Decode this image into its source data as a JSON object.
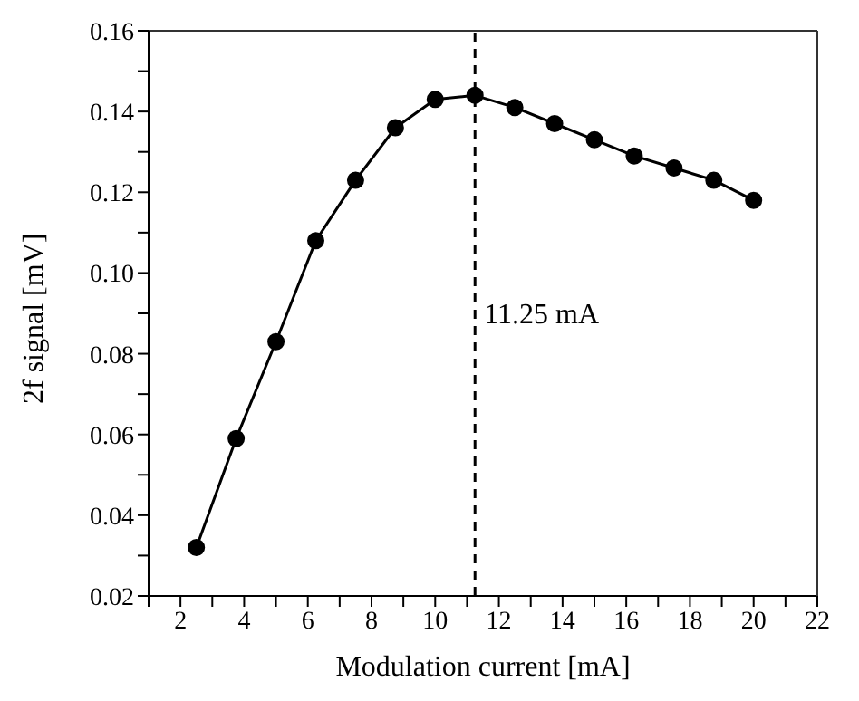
{
  "chart_data": {
    "type": "line",
    "xlabel": "Modulation current [mA]",
    "ylabel": "2f signal [mV]",
    "x": [
      2.5,
      3.75,
      5,
      6.25,
      7.5,
      8.75,
      10,
      11.25,
      12.5,
      13.75,
      15,
      16.25,
      17.5,
      18.75,
      20
    ],
    "series": [
      {
        "color": "#000000",
        "values": [
          0.032,
          0.059,
          0.083,
          0.108,
          0.123,
          0.136,
          0.143,
          0.144,
          0.141,
          0.137,
          0.133,
          0.129,
          0.126,
          0.123,
          0.118
        ]
      }
    ],
    "marker": "circle",
    "line_style": "solid",
    "grid": false,
    "legend": false,
    "xlim": [
      1,
      22
    ],
    "xticks": [
      {
        "value": 1,
        "label": null
      },
      2,
      {
        "value": 3,
        "label": null
      },
      4,
      {
        "value": 5,
        "label": null
      },
      6,
      {
        "value": 7,
        "label": null
      },
      8,
      {
        "value": 9,
        "label": null
      },
      10,
      {
        "value": 11,
        "label": null
      },
      12,
      {
        "value": 13,
        "label": null
      },
      14,
      {
        "value": 15,
        "label": null
      },
      16,
      {
        "value": 17,
        "label": null
      },
      18,
      {
        "value": 19,
        "label": null
      },
      20,
      {
        "value": 21,
        "label": null
      },
      22
    ],
    "ylim": [
      0.02,
      0.16
    ],
    "yticks": [
      "0.02",
      {
        "value": 0.03,
        "label": null
      },
      {
        "value": 0.04,
        "label": "0.04"
      },
      {
        "value": 0.05,
        "label": null
      },
      {
        "value": 0.06,
        "label": "0.06"
      },
      {
        "value": 0.07,
        "label": null
      },
      {
        "value": 0.08,
        "label": "0.08"
      },
      {
        "value": 0.09,
        "label": null
      },
      {
        "value": 0.1,
        "label": "0.10"
      },
      {
        "value": 0.11,
        "label": null
      },
      {
        "value": 0.12,
        "label": "0.12"
      },
      {
        "value": 0.13,
        "label": null
      },
      {
        "value": 0.14,
        "label": "0.14"
      },
      {
        "value": 0.15,
        "label": null
      },
      {
        "value": 0.16,
        "label": "0.16"
      }
    ],
    "ref_lines": [
      {
        "axis": "x",
        "value": 11.25,
        "label": "11.25 mA",
        "line_style": "dashed",
        "color": "#000000"
      }
    ]
  }
}
